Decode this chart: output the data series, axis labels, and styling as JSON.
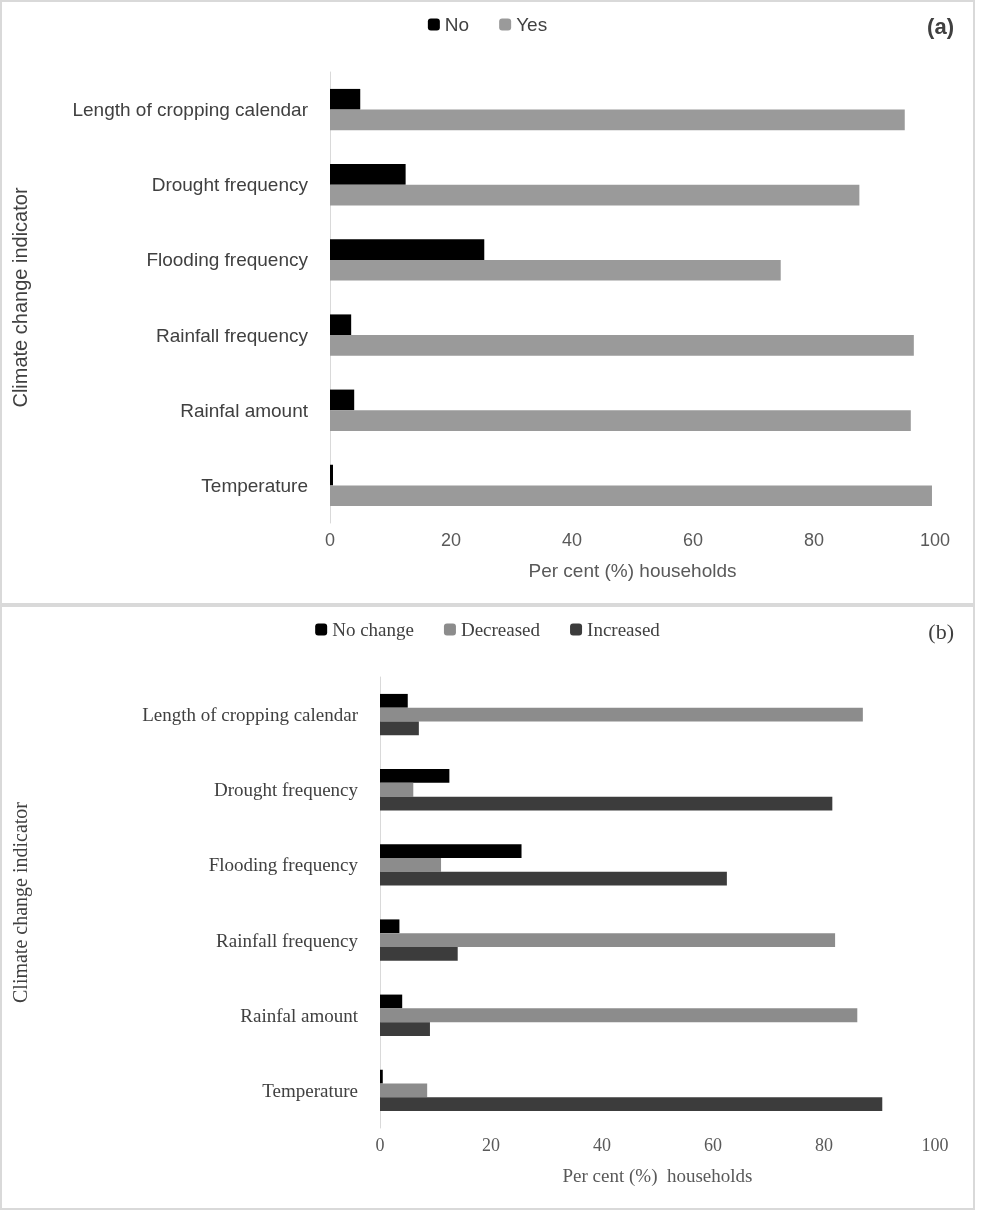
{
  "chart_data": [
    {
      "type": "bar",
      "orientation": "horizontal",
      "title": "(a)",
      "xlabel": "Per cent (%) households",
      "ylabel": "Climate change indicator",
      "categories": [
        "Length of cropping calendar",
        "Drought frequency",
        "Flooding frequency",
        "Rainfall frequency",
        "Rainfal amount",
        "Temperature"
      ],
      "series": [
        {
          "name": "No",
          "color": "#000000",
          "values": [
            5,
            12.5,
            25.5,
            3.5,
            4,
            0.5
          ]
        },
        {
          "name": "Yes",
          "color": "#9a9a9a",
          "values": [
            95,
            87.5,
            74.5,
            96.5,
            96,
            99.5
          ]
        }
      ],
      "xlim": [
        0,
        100
      ],
      "xticks": [
        0,
        20,
        40,
        60,
        80,
        100
      ],
      "legend": "top"
    },
    {
      "type": "bar",
      "orientation": "horizontal",
      "title": "(b)",
      "xlabel": "Per cent (%)  households",
      "ylabel": "Climate change indicator",
      "categories": [
        "Length of cropping calendar",
        "Drought frequency",
        "Flooding frequency",
        "Rainfall frequency",
        "Rainfal amount",
        "Temperature"
      ],
      "series": [
        {
          "name": "No change",
          "color": "#000000",
          "values": [
            5,
            12.5,
            25.5,
            3.5,
            4,
            0.5
          ]
        },
        {
          "name": "Decreased",
          "color": "#8c8c8c",
          "values": [
            87,
            6,
            11,
            82,
            86,
            8.5
          ]
        },
        {
          "name": "Increased",
          "color": "#3c3c3c",
          "values": [
            7,
            81.5,
            62.5,
            14,
            9,
            90.5
          ]
        }
      ],
      "xlim": [
        0,
        100
      ],
      "xticks": [
        0,
        20,
        40,
        60,
        80,
        100
      ],
      "legend": "top"
    }
  ]
}
